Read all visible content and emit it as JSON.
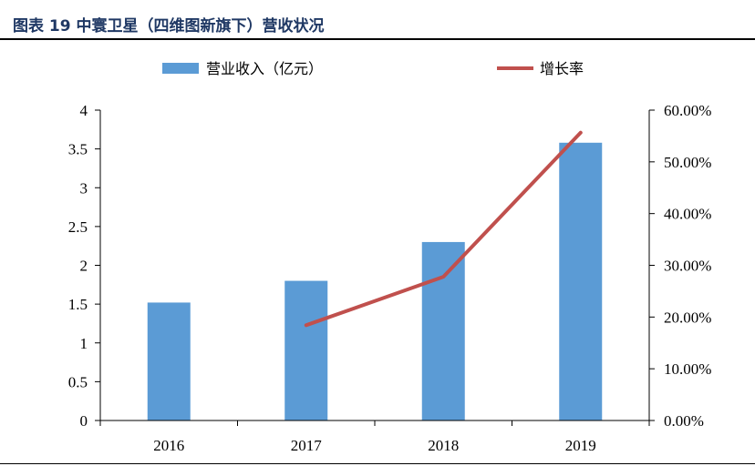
{
  "figure": {
    "title": "图表 19  中寰卫星（四维图新旗下）营收状况"
  },
  "colors": {
    "title": "#1f3864",
    "bar": "#5b9bd5",
    "line": "#c0504d",
    "axis": "#000000"
  },
  "chart_data": {
    "type": "bar",
    "categories": [
      "2016",
      "2017",
      "2018",
      "2019"
    ],
    "series": [
      {
        "name": "营业收入（亿元）",
        "type": "bar",
        "axis": "left",
        "values": [
          1.52,
          1.8,
          2.3,
          3.58
        ]
      },
      {
        "name": "增长率",
        "type": "line",
        "axis": "right",
        "values": [
          null,
          0.1842,
          0.2778,
          0.5565
        ]
      }
    ],
    "y_left": {
      "ylim": [
        0,
        4
      ],
      "ticks": [
        0,
        0.5,
        1,
        1.5,
        2,
        2.5,
        3,
        3.5,
        4
      ],
      "tick_labels": [
        "0",
        "0.5",
        "1",
        "1.5",
        "2",
        "2.5",
        "3",
        "3.5",
        "4"
      ]
    },
    "y_right": {
      "ylim": [
        0,
        0.6
      ],
      "ticks": [
        0,
        0.1,
        0.2,
        0.3,
        0.4,
        0.5,
        0.6
      ],
      "tick_labels": [
        "0.00%",
        "10.00%",
        "20.00%",
        "30.00%",
        "40.00%",
        "50.00%",
        "60.00%"
      ]
    },
    "legend": {
      "position": "top"
    },
    "grid": false
  }
}
